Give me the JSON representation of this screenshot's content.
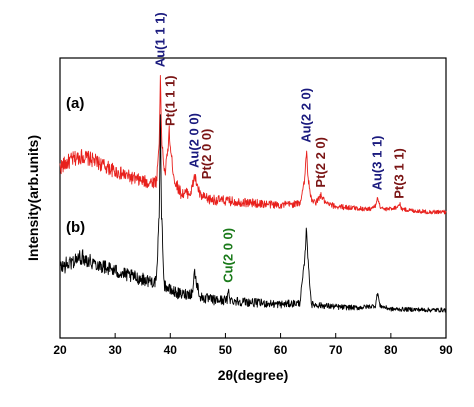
{
  "chart_data": {
    "type": "line",
    "xlabel": "2θ(degree)",
    "ylabel": "Intensity(arb.units)",
    "xlim": [
      20,
      90
    ],
    "ylim": [
      0,
      100
    ],
    "xticks": [
      "20",
      "30",
      "40",
      "50",
      "60",
      "70",
      "80",
      "90"
    ],
    "y_tick_labels_shown": false,
    "grid": false,
    "legend": "none",
    "series": [
      {
        "name": "(a)",
        "color": "#e8201c",
        "points": [
          [
            20,
            61.0
          ],
          [
            22,
            63.5
          ],
          [
            24,
            65.0
          ],
          [
            26,
            63.5
          ],
          [
            28,
            61.5
          ],
          [
            30,
            59.5
          ],
          [
            32,
            58.0
          ],
          [
            34,
            56.5
          ],
          [
            36,
            55.5
          ],
          [
            37.5,
            56.0
          ],
          [
            38.0,
            70.0
          ],
          [
            38.2,
            95.0
          ],
          [
            38.4,
            72.0
          ],
          [
            39.0,
            58.0
          ],
          [
            39.5,
            66.0
          ],
          [
            39.8,
            74.0
          ],
          [
            40.1,
            66.0
          ],
          [
            40.8,
            56.0
          ],
          [
            42,
            51.5
          ],
          [
            43.8,
            52.0
          ],
          [
            44.4,
            58.0
          ],
          [
            44.8,
            55.0
          ],
          [
            45.5,
            50.5
          ],
          [
            47,
            49.5
          ],
          [
            50,
            49.0
          ],
          [
            53,
            48.5
          ],
          [
            56,
            48.0
          ],
          [
            60,
            47.5
          ],
          [
            63.5,
            48.0
          ],
          [
            64.4,
            57.0
          ],
          [
            64.7,
            67.0
          ],
          [
            65.0,
            57.0
          ],
          [
            65.6,
            49.0
          ],
          [
            66.5,
            48.5
          ],
          [
            67.3,
            51.0
          ],
          [
            68.2,
            48.0
          ],
          [
            70,
            47.0
          ],
          [
            73,
            46.5
          ],
          [
            76,
            46.0
          ],
          [
            77.2,
            47.0
          ],
          [
            77.6,
            50.5
          ],
          [
            78.0,
            47.0
          ],
          [
            79,
            45.8
          ],
          [
            81.2,
            46.8
          ],
          [
            81.6,
            48.0
          ],
          [
            82.0,
            46.0
          ],
          [
            84,
            45.5
          ],
          [
            87,
            45.0
          ],
          [
            90,
            45.0
          ]
        ]
      },
      {
        "name": "(b)",
        "color": "#000000",
        "points": [
          [
            20,
            25.0
          ],
          [
            22,
            27.0
          ],
          [
            24,
            29.0
          ],
          [
            26,
            27.0
          ],
          [
            28,
            25.5
          ],
          [
            30,
            24.0
          ],
          [
            32,
            22.5
          ],
          [
            34,
            21.5
          ],
          [
            36,
            20.5
          ],
          [
            37.5,
            20.0
          ],
          [
            38.0,
            45.0
          ],
          [
            38.2,
            79.0
          ],
          [
            38.4,
            45.0
          ],
          [
            38.9,
            19.0
          ],
          [
            40,
            17.0
          ],
          [
            42,
            15.5
          ],
          [
            44.0,
            16.0
          ],
          [
            44.4,
            24.0
          ],
          [
            44.7,
            20.0
          ],
          [
            45.5,
            14.5
          ],
          [
            48,
            13.5
          ],
          [
            50.3,
            13.5
          ],
          [
            50.6,
            17.0
          ],
          [
            50.9,
            13.5
          ],
          [
            53,
            13.0
          ],
          [
            56,
            12.5
          ],
          [
            60,
            12.0
          ],
          [
            63.5,
            12.5
          ],
          [
            64.4,
            28.0
          ],
          [
            64.7,
            40.0
          ],
          [
            65.0,
            27.0
          ],
          [
            65.6,
            12.0
          ],
          [
            68,
            11.5
          ],
          [
            71,
            11.0
          ],
          [
            74,
            10.8
          ],
          [
            77.2,
            11.5
          ],
          [
            77.6,
            16.5
          ],
          [
            78.0,
            11.5
          ],
          [
            80,
            10.3
          ],
          [
            84,
            10.2
          ],
          [
            87,
            10.0
          ],
          [
            90,
            10.0
          ]
        ]
      }
    ],
    "series_labels": [
      "(a)",
      "(b)"
    ],
    "annotations": [
      {
        "text": "Au(1 1 1)",
        "x": 38.2,
        "y": 96,
        "color": "#1a1a7e"
      },
      {
        "text": "Pt(1 1 1)",
        "x": 40.0,
        "y": 75,
        "color": "#7a1414"
      },
      {
        "text": "Au(2 0 0)",
        "x": 44.4,
        "y": 60,
        "color": "#1a1a7e"
      },
      {
        "text": "Pt(2 0 0)",
        "x": 46.7,
        "y": 56,
        "color": "#7a1414"
      },
      {
        "text": "Cu(2 0 0)",
        "x": 50.6,
        "y": 19,
        "color": "#1a7a1a"
      },
      {
        "text": "Au(2 2 0)",
        "x": 64.7,
        "y": 69,
        "color": "#1a1a7e"
      },
      {
        "text": "Pt(2 2 0)",
        "x": 67.3,
        "y": 53,
        "color": "#7a1414"
      },
      {
        "text": "Au(3 1 1)",
        "x": 77.6,
        "y": 52,
        "color": "#1a1a7e"
      },
      {
        "text": "Pt(3 1 1)",
        "x": 81.6,
        "y": 49,
        "color": "#7a1414"
      }
    ]
  }
}
